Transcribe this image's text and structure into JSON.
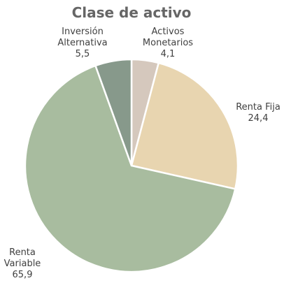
{
  "chart_data": {
    "type": "pie",
    "title": "Clase de activo",
    "categories": [
      "Activos Monetarios",
      "Renta Fija",
      "Renta Variable",
      "Inversión Alternativa"
    ],
    "values": [
      4.1,
      24.4,
      65.9,
      5.5
    ],
    "value_labels": [
      "4,1",
      "24,4",
      "65,9",
      "5,5"
    ],
    "colors": [
      "#d5c8bd",
      "#e8d5b0",
      "#a8bc9f",
      "#87998b"
    ]
  }
}
